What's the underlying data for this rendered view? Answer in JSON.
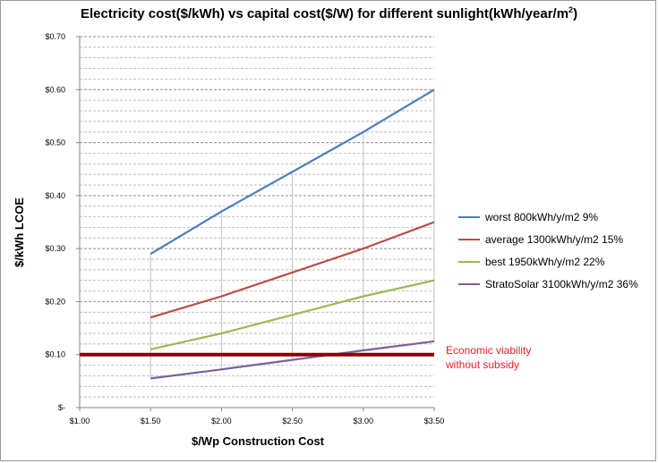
{
  "chart_data": {
    "type": "line",
    "title": "Electricity cost($/kWh) vs capital cost($/W) for different sunlight(kWh/year/m",
    "title_superscript": "2",
    "title_suffix": ")",
    "xlabel": "$/Wp Construction Cost",
    "ylabel": "$/kWh LCOE",
    "x_tick_labels": [
      "$1.00",
      "$1.50",
      "$2.00",
      "$2.50",
      "$3.00",
      "$3.50"
    ],
    "y_tick_labels": [
      "$-",
      "$0.10",
      "$0.20",
      "$0.30",
      "$0.40",
      "$0.50",
      "$0.60",
      "$0.70"
    ],
    "xlim": [
      1.0,
      3.5
    ],
    "ylim": [
      0,
      0.7
    ],
    "grid": "horizontal dashed",
    "legend_position": "right",
    "x": [
      1.5,
      2.0,
      2.5,
      3.0,
      3.5
    ],
    "series": [
      {
        "name": "worst 800kWh/y/m2 9%",
        "color": "#4a7ebb",
        "values": [
          0.29,
          0.37,
          0.445,
          0.52,
          0.6
        ]
      },
      {
        "name": "average 1300kWh/y/m2 15%",
        "color": "#be4b48",
        "values": [
          0.17,
          0.21,
          0.255,
          0.3,
          0.35
        ]
      },
      {
        "name": "best 1950kWh/y/m2 22%",
        "color": "#98b954",
        "values": [
          0.11,
          0.14,
          0.175,
          0.21,
          0.24
        ]
      },
      {
        "name": "StratoSolar 3100kWh/y/m2 36%",
        "color": "#7d60a0",
        "values": [
          0.055,
          0.072,
          0.09,
          0.108,
          0.125
        ]
      }
    ],
    "reference_line": {
      "value": 0.1,
      "color": "#8b0000",
      "label_line1": "Economic viability",
      "label_line2": "without subsidy",
      "label_color": "#e8212a"
    }
  }
}
